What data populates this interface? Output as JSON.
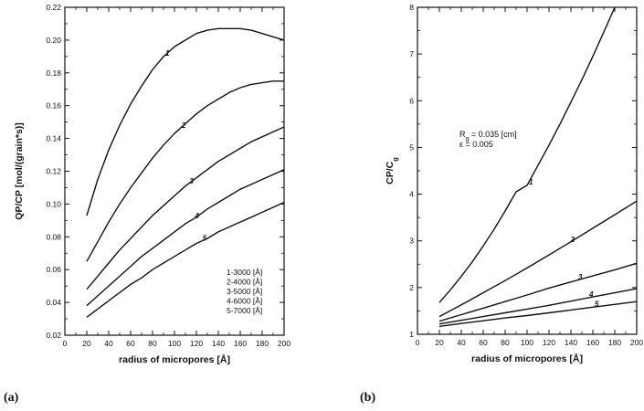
{
  "panel_labels": [
    "(a)",
    "(b)"
  ],
  "chart_data": [
    {
      "type": "line",
      "xlabel": "radius of micropores [Å]",
      "ylabel": "QP/CP [mol/(grain*s)]",
      "xlim": [
        0,
        200
      ],
      "ylim": [
        0.02,
        0.22
      ],
      "x_ticks": [
        0,
        20,
        40,
        60,
        80,
        100,
        120,
        140,
        160,
        180,
        200
      ],
      "y_ticks": [
        0.02,
        0.04,
        0.06,
        0.08,
        0.1,
        0.12,
        0.14,
        0.16,
        0.18,
        0.2,
        0.22
      ],
      "y_tick_labels": [
        "0.02",
        "0.04",
        "0.06",
        "0.08",
        "0.10",
        "0.12",
        "0.14",
        "0.16",
        "0.18",
        "0.20",
        "0.22"
      ],
      "grid": false,
      "legend": {
        "placement": "bottom-right",
        "entries": [
          "1-3000 [Å]",
          "2-4000 [Å]",
          "3-5000 [Å]",
          "4-6000 [Å]",
          "5-7000 [Å]"
        ]
      },
      "series": [
        {
          "name": "1",
          "label_at": 90,
          "x": [
            20,
            30,
            40,
            50,
            60,
            70,
            80,
            90,
            100,
            110,
            120,
            130,
            140,
            150,
            160,
            170,
            180,
            190,
            200
          ],
          "y": [
            0.093,
            0.115,
            0.133,
            0.148,
            0.161,
            0.172,
            0.182,
            0.19,
            0.196,
            0.2,
            0.204,
            0.206,
            0.207,
            0.207,
            0.207,
            0.206,
            0.204,
            0.202,
            0.2
          ]
        },
        {
          "name": "2",
          "label_at": 105,
          "x": [
            20,
            30,
            40,
            50,
            60,
            70,
            80,
            90,
            100,
            110,
            120,
            130,
            140,
            150,
            160,
            170,
            180,
            190,
            200
          ],
          "y": [
            0.065,
            0.077,
            0.089,
            0.1,
            0.11,
            0.119,
            0.128,
            0.136,
            0.143,
            0.149,
            0.155,
            0.16,
            0.164,
            0.168,
            0.171,
            0.173,
            0.174,
            0.175,
            0.175
          ]
        },
        {
          "name": "3",
          "label_at": 112,
          "x": [
            20,
            30,
            40,
            50,
            60,
            70,
            80,
            90,
            100,
            110,
            120,
            130,
            140,
            150,
            160,
            170,
            180,
            190,
            200
          ],
          "y": [
            0.048,
            0.056,
            0.064,
            0.072,
            0.079,
            0.086,
            0.093,
            0.099,
            0.105,
            0.111,
            0.116,
            0.121,
            0.126,
            0.13,
            0.134,
            0.138,
            0.141,
            0.144,
            0.147
          ]
        },
        {
          "name": "4",
          "label_at": 117,
          "x": [
            20,
            30,
            40,
            50,
            60,
            70,
            80,
            90,
            100,
            110,
            120,
            130,
            140,
            150,
            160,
            170,
            180,
            190,
            200
          ],
          "y": [
            0.038,
            0.044,
            0.05,
            0.056,
            0.062,
            0.068,
            0.073,
            0.078,
            0.083,
            0.088,
            0.092,
            0.097,
            0.101,
            0.105,
            0.109,
            0.112,
            0.115,
            0.118,
            0.121
          ]
        },
        {
          "name": "5",
          "label_at": 124,
          "x": [
            20,
            30,
            40,
            50,
            60,
            70,
            80,
            90,
            100,
            110,
            120,
            130,
            140,
            150,
            160,
            170,
            180,
            190,
            200
          ],
          "y": [
            0.031,
            0.036,
            0.041,
            0.046,
            0.051,
            0.055,
            0.06,
            0.064,
            0.068,
            0.072,
            0.076,
            0.079,
            0.083,
            0.086,
            0.089,
            0.092,
            0.095,
            0.098,
            0.101
          ]
        }
      ]
    },
    {
      "type": "line",
      "xlabel": "radius of micropores  [Å]",
      "ylabel": "CP/C",
      "ylabel_subscript": "g",
      "xlim": [
        0,
        200
      ],
      "ylim": [
        1,
        8
      ],
      "x_ticks": [
        0,
        20,
        40,
        60,
        80,
        100,
        120,
        140,
        160,
        180,
        200
      ],
      "y_ticks": [
        1,
        2,
        3,
        4,
        5,
        6,
        7,
        8
      ],
      "y_tick_labels": [
        "1",
        "2",
        "3",
        "4",
        "5",
        "6",
        "7",
        "8"
      ],
      "grid": false,
      "annotations": [
        {
          "text": "R",
          "subscript": "g",
          "suffix": " = 0.035 [cm]"
        },
        {
          "text": "ε = 0.005"
        }
      ],
      "series": [
        {
          "name": "1",
          "label_at": 100,
          "x": [
            20,
            30,
            40,
            50,
            60,
            70,
            80,
            90,
            100,
            110,
            120,
            130,
            140,
            150,
            160,
            170,
            180
          ],
          "y": [
            1.68,
            1.95,
            2.24,
            2.55,
            2.89,
            3.25,
            3.64,
            4.05,
            4.19,
            4.62,
            5.05,
            5.5,
            5.97,
            6.45,
            6.95,
            7.47,
            8.0
          ]
        },
        {
          "name": "2",
          "label_at": 138,
          "x": [
            20,
            40,
            60,
            80,
            100,
            120,
            140,
            160,
            180,
            200
          ],
          "y": [
            1.38,
            1.63,
            1.89,
            2.15,
            2.42,
            2.7,
            2.98,
            3.27,
            3.56,
            3.85
          ]
        },
        {
          "name": "3",
          "label_at": 145,
          "x": [
            20,
            40,
            60,
            80,
            100,
            120,
            140,
            160,
            180,
            200
          ],
          "y": [
            1.28,
            1.42,
            1.56,
            1.7,
            1.84,
            1.99,
            2.12,
            2.25,
            2.38,
            2.52
          ]
        },
        {
          "name": "4",
          "label_at": 155,
          "x": [
            20,
            40,
            60,
            80,
            100,
            120,
            140,
            160,
            180,
            200
          ],
          "y": [
            1.22,
            1.3,
            1.38,
            1.46,
            1.54,
            1.62,
            1.71,
            1.8,
            1.89,
            1.98
          ]
        },
        {
          "name": "5",
          "label_at": 160,
          "x": [
            20,
            40,
            60,
            80,
            100,
            120,
            140,
            160,
            180,
            200
          ],
          "y": [
            1.17,
            1.23,
            1.29,
            1.35,
            1.4,
            1.46,
            1.52,
            1.58,
            1.64,
            1.7
          ]
        }
      ]
    }
  ]
}
